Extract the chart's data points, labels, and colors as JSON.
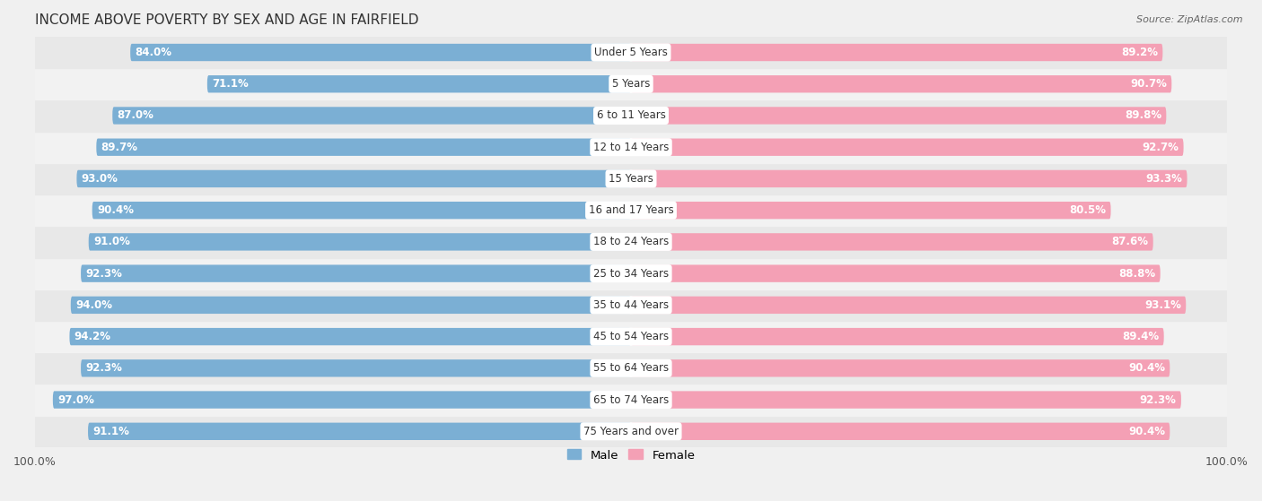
{
  "title": "INCOME ABOVE POVERTY BY SEX AND AGE IN FAIRFIELD",
  "source": "Source: ZipAtlas.com",
  "categories": [
    "Under 5 Years",
    "5 Years",
    "6 to 11 Years",
    "12 to 14 Years",
    "15 Years",
    "16 and 17 Years",
    "18 to 24 Years",
    "25 to 34 Years",
    "35 to 44 Years",
    "45 to 54 Years",
    "55 to 64 Years",
    "65 to 74 Years",
    "75 Years and over"
  ],
  "male_values": [
    84.0,
    71.1,
    87.0,
    89.7,
    93.0,
    90.4,
    91.0,
    92.3,
    94.0,
    94.2,
    92.3,
    97.0,
    91.1
  ],
  "female_values": [
    89.2,
    90.7,
    89.8,
    92.7,
    93.3,
    80.5,
    87.6,
    88.8,
    93.1,
    89.4,
    90.4,
    92.3,
    90.4
  ],
  "male_color": "#7bafd4",
  "female_color": "#f4a0b5",
  "male_color_light": "#b8d4ea",
  "female_color_light": "#f9c8d6",
  "row_color_even": "#e8e8e8",
  "row_color_odd": "#f2f2f2",
  "bg_color": "#f0f0f0",
  "axis_label": "100.0%",
  "legend_male": "Male",
  "legend_female": "Female",
  "title_fontsize": 11,
  "label_fontsize": 8.5,
  "category_fontsize": 8.5
}
